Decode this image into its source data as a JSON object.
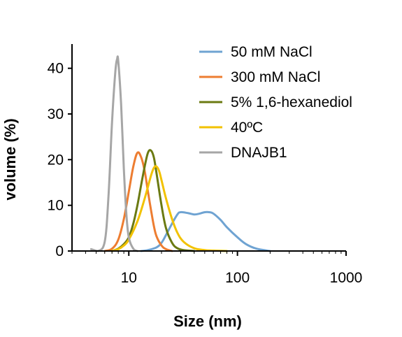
{
  "chart_data": {
    "type": "line",
    "title": "",
    "xlabel": "Size (nm)",
    "ylabel": "volume (%)",
    "x_scale": "log",
    "xlim": [
      3,
      1000
    ],
    "ylim": [
      0,
      45
    ],
    "x_ticks": [
      10,
      100,
      1000
    ],
    "x_tick_labels": [
      "10",
      "100",
      "1000"
    ],
    "y_ticks": [
      0,
      10,
      20,
      30,
      40
    ],
    "y_tick_labels": [
      "0",
      "10",
      "20",
      "30",
      "40"
    ],
    "grid": false,
    "legend_position": "top-right",
    "series": [
      {
        "name": "50 mM NaCl",
        "color": "#6fa3d2",
        "x": [
          13,
          15,
          18,
          20,
          22,
          25,
          28,
          30,
          35,
          40,
          45,
          50,
          55,
          60,
          70,
          80,
          100,
          120,
          150,
          200
        ],
        "y": [
          0,
          0.2,
          0.8,
          1.8,
          3.5,
          6,
          8,
          8.5,
          8.3,
          8.0,
          8.2,
          8.5,
          8.5,
          8.2,
          6.8,
          5.2,
          3.0,
          1.5,
          0.5,
          0
        ]
      },
      {
        "name": "300 mM NaCl",
        "color": "#ed7d31",
        "x": [
          6,
          7,
          8,
          9,
          10,
          11,
          12,
          13,
          14,
          15,
          16,
          17,
          18,
          20,
          22,
          25
        ],
        "y": [
          0,
          0.5,
          2.5,
          7,
          13,
          18.5,
          21.5,
          20.5,
          17.5,
          13,
          9,
          5.5,
          3.2,
          1.2,
          0.4,
          0
        ]
      },
      {
        "name": "5% 1,6-hexanediol",
        "color": "#6b7a12",
        "x": [
          7,
          8,
          9,
          10,
          11,
          12,
          13,
          14,
          15,
          16,
          17,
          18,
          20,
          22,
          25,
          28,
          32,
          40
        ],
        "y": [
          0,
          0.5,
          1.5,
          3,
          6,
          10,
          14.5,
          18.5,
          21.5,
          22,
          20.5,
          17,
          10,
          5,
          1.8,
          0.6,
          0.2,
          0
        ]
      },
      {
        "name": "40ºC",
        "color": "#f2c200",
        "x": [
          7,
          8,
          9,
          10,
          12,
          14,
          16,
          17,
          18,
          19,
          20,
          22,
          25,
          28,
          32,
          40,
          50,
          60,
          80
        ],
        "y": [
          0,
          0.4,
          1.2,
          2.5,
          6.5,
          11.5,
          16.5,
          18.2,
          18.5,
          17.5,
          15.5,
          11.5,
          7,
          4,
          2,
          0.6,
          0.2,
          0.1,
          0
        ]
      },
      {
        "name": "DNAJB1",
        "color": "#a6a6a6",
        "x": [
          4.5,
          5.2,
          6,
          6.5,
          7,
          7.5,
          7.8,
          8,
          8.5,
          9,
          9.5,
          10,
          11,
          12
        ],
        "y": [
          0.4,
          0,
          2,
          12,
          28,
          39,
          42,
          41.5,
          32,
          18,
          8,
          3,
          0.5,
          0
        ]
      }
    ]
  }
}
